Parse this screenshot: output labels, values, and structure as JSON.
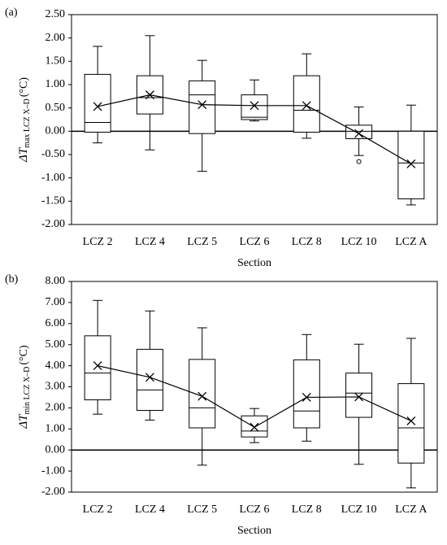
{
  "chart_data": [
    {
      "type": "box",
      "panel_label": "(a)",
      "xlabel": "Section",
      "ylabel": {
        "main": "ΔT",
        "sub": "max LCZ X–D",
        "unit": "(°C)"
      },
      "categories": [
        "LCZ 2",
        "LCZ 4",
        "LCZ 5",
        "LCZ 6",
        "LCZ 8",
        "LCZ 10",
        "LCZ A"
      ],
      "whisker_low": [
        -0.25,
        -0.4,
        -0.86,
        0.22,
        -0.15,
        -0.52,
        -1.58
      ],
      "q1": [
        -0.02,
        0.37,
        -0.05,
        0.25,
        -0.02,
        -0.16,
        -1.45
      ],
      "median": [
        0.19,
        0.72,
        0.78,
        0.3,
        0.45,
        0.0,
        -0.68
      ],
      "q3": [
        1.22,
        1.19,
        1.08,
        0.78,
        1.19,
        0.13,
        0.0
      ],
      "whisker_high": [
        1.82,
        2.05,
        1.52,
        1.1,
        1.66,
        0.52,
        0.56
      ],
      "mean": [
        0.53,
        0.78,
        0.57,
        0.55,
        0.55,
        -0.05,
        -0.7
      ],
      "outliers": [
        [],
        [],
        [],
        [],
        [],
        [
          -0.65
        ],
        []
      ],
      "ylim": [
        -2,
        2.5
      ],
      "yticks": [
        {
          "value": -2,
          "label": "-2.00"
        },
        {
          "value": -1.5,
          "label": "-1.50"
        },
        {
          "value": -1,
          "label": "-1.00"
        },
        {
          "value": -0.5,
          "label": "-0.50"
        },
        {
          "value": 0,
          "label": "0.00"
        },
        {
          "value": 0.5,
          "label": "0.50"
        },
        {
          "value": 1,
          "label": "1.00"
        },
        {
          "value": 1.5,
          "label": "1.50"
        },
        {
          "value": 2,
          "label": "2.00"
        },
        {
          "value": 2.5,
          "label": "2.50"
        }
      ],
      "color": "#000000"
    },
    {
      "type": "box",
      "panel_label": "(b)",
      "xlabel": "Section",
      "ylabel": {
        "main": "ΔT",
        "sub": "min LCZ X–D",
        "unit": "(°C)"
      },
      "categories": [
        "LCZ 2",
        "LCZ 4",
        "LCZ 5",
        "LCZ 6",
        "LCZ 8",
        "LCZ 10",
        "LCZ A"
      ],
      "whisker_low": [
        1.7,
        1.42,
        -0.72,
        0.35,
        0.42,
        -0.68,
        -1.8
      ],
      "q1": [
        2.38,
        1.88,
        1.05,
        0.62,
        1.05,
        1.55,
        -0.62
      ],
      "median": [
        3.65,
        2.85,
        2.0,
        0.9,
        1.85,
        2.7,
        1.05
      ],
      "q3": [
        5.42,
        4.78,
        4.3,
        1.62,
        4.28,
        3.65,
        3.15
      ],
      "whisker_high": [
        7.1,
        6.6,
        5.8,
        1.97,
        5.48,
        5.02,
        5.3
      ],
      "mean": [
        4.0,
        3.45,
        2.55,
        1.08,
        2.5,
        2.52,
        1.38
      ],
      "outliers": [
        [],
        [],
        [],
        [],
        [],
        [],
        []
      ],
      "ylim": [
        -2,
        8
      ],
      "yticks": [
        {
          "value": -2,
          "label": "-2.00"
        },
        {
          "value": -1,
          "label": "-1.00"
        },
        {
          "value": 0,
          "label": "0.00"
        },
        {
          "value": 1,
          "label": "1.00"
        },
        {
          "value": 2,
          "label": "2.00"
        },
        {
          "value": 3,
          "label": "3.00"
        },
        {
          "value": 4,
          "label": "4.00"
        },
        {
          "value": 5,
          "label": "5.00"
        },
        {
          "value": 6,
          "label": "6.00"
        },
        {
          "value": 7,
          "label": "7.00"
        },
        {
          "value": 8,
          "label": "8.00"
        }
      ],
      "color": "#000000"
    }
  ]
}
